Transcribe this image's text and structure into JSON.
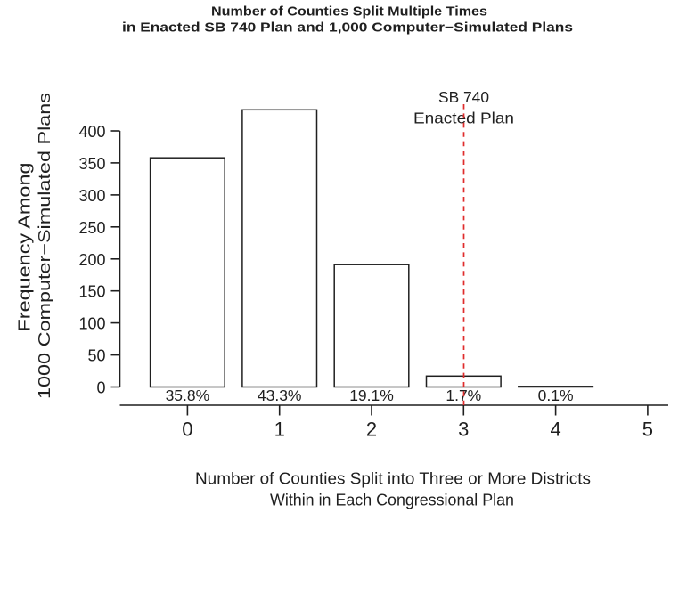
{
  "chart_data": {
    "type": "bar",
    "title_lines": [
      "Number of Counties Split Multiple Times",
      "in Enacted SB 740 Plan and 1,000 Computer−Simulated Plans"
    ],
    "xlabel_lines": [
      "Number of Counties Split into Three or More Districts",
      "Within in Each Congressional Plan"
    ],
    "ylabel_lines": [
      "Frequency Among",
      "1000 Computer−Simulated Plans"
    ],
    "x": [
      0,
      1,
      2,
      3,
      4
    ],
    "values": [
      358,
      433,
      191,
      17,
      1
    ],
    "bar_labels": [
      "35.8%",
      "43.3%",
      "19.1%",
      "1.7%",
      "0.1%"
    ],
    "x_ticks": [
      "0",
      "1",
      "2",
      "3",
      "4",
      "5"
    ],
    "y_ticks": [
      "0",
      "50",
      "100",
      "150",
      "200",
      "250",
      "300",
      "350",
      "400"
    ],
    "xlim": [
      0,
      5
    ],
    "ylim": [
      0,
      400
    ],
    "grid": false,
    "legend": null,
    "annotation": {
      "label_lines": [
        "SB 740",
        "Enacted Plan"
      ],
      "x": 3,
      "style": "dashed-vertical-line",
      "color": "#df2c2c"
    },
    "colors": {
      "background": "#ffffff",
      "bar_fill": "#ffffff",
      "bar_stroke": "#1f1f1f",
      "axis": "#1f1f1f",
      "text": "#1f1f1f",
      "annotation": "#df2c2c"
    }
  }
}
